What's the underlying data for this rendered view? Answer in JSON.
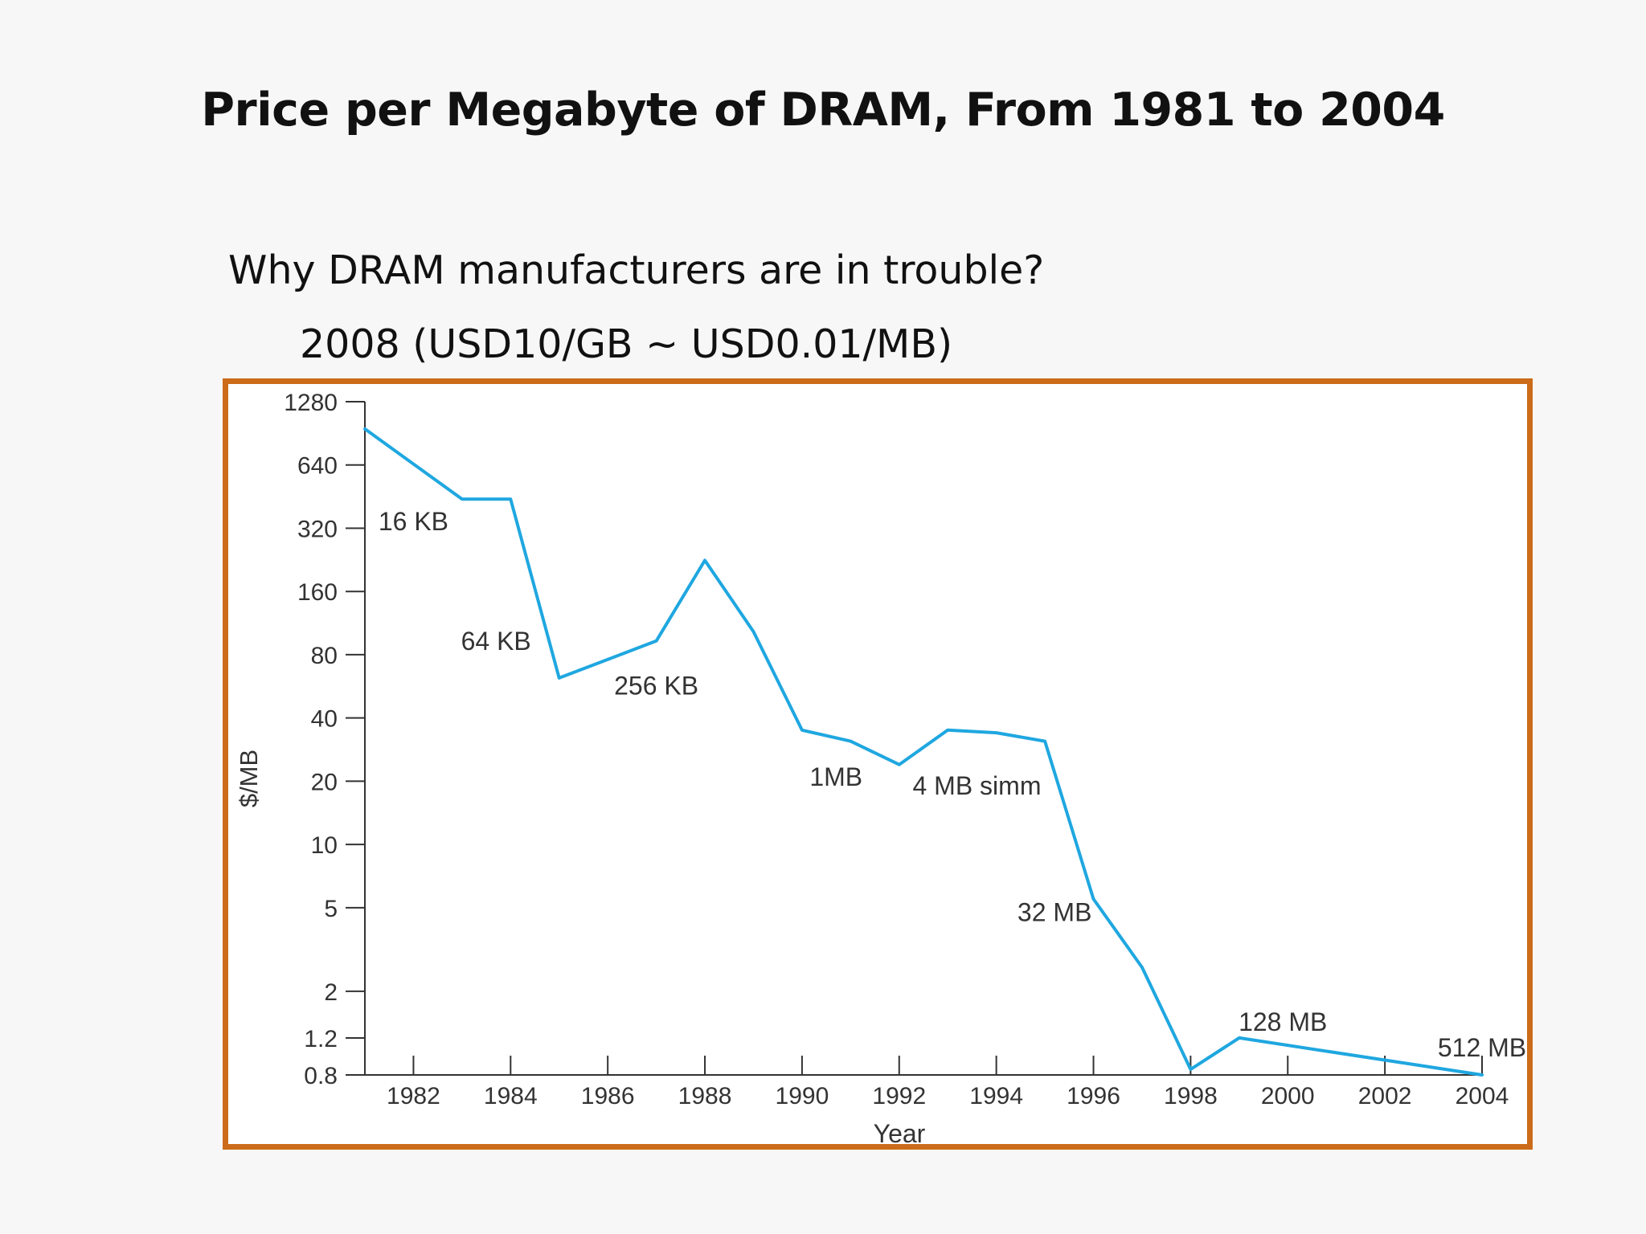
{
  "slide": {
    "title": "Price per Megabyte of DRAM, From 1981 to 2004",
    "bullet_1": "Why DRAM manufacturers are in trouble?",
    "bullet_2": "2008 (USD10/GB ~ USD0.01/MB)"
  },
  "colors": {
    "frame": "#cc6c1a",
    "line": "#1fa7e0",
    "axis": "#333333"
  },
  "chart_data": {
    "type": "line",
    "title": "",
    "xlabel": "Year",
    "ylabel": "$/MB",
    "y_scale": "log",
    "xlim": [
      1981,
      2004
    ],
    "ylim": [
      0.8,
      1280
    ],
    "x_ticks": [
      1982,
      1984,
      1986,
      1988,
      1990,
      1992,
      1994,
      1996,
      1998,
      2000,
      2002,
      2004
    ],
    "y_ticks": [
      {
        "value": 0.8,
        "label": "0.8"
      },
      {
        "value": 1.2,
        "label": "1.2"
      },
      {
        "value": 2,
        "label": "2"
      },
      {
        "value": 5,
        "label": "5"
      },
      {
        "value": 10,
        "label": "10"
      },
      {
        "value": 20,
        "label": "20"
      },
      {
        "value": 40,
        "label": "40"
      },
      {
        "value": 80,
        "label": "80"
      },
      {
        "value": 160,
        "label": "160"
      },
      {
        "value": 320,
        "label": "320"
      },
      {
        "value": 640,
        "label": "640"
      },
      {
        "value": 1280,
        "label": "1280"
      }
    ],
    "grid": false,
    "series": [
      {
        "x": [
          1981,
          1983,
          1984,
          1985,
          1987,
          1988,
          1989,
          1990,
          1991,
          1992,
          1993,
          1994,
          1995,
          1996,
          1997,
          1998,
          1999,
          2004
        ],
        "y": [
          950,
          440,
          440,
          62,
          93,
          225,
          103,
          35,
          31,
          24,
          35,
          34,
          31,
          5.5,
          2.6,
          0.85,
          1.2,
          0.8
        ]
      }
    ],
    "annotations": [
      {
        "text": "16 KB",
        "x": 1982.0,
        "y": 345
      },
      {
        "text": "64 KB",
        "x": 1983.7,
        "y": 93
      },
      {
        "text": "256 KB",
        "x": 1987.0,
        "y": 57
      },
      {
        "text": "1MB",
        "x": 1990.7,
        "y": 21
      },
      {
        "text": "4 MB simm",
        "x": 1993.6,
        "y": 19
      },
      {
        "text": "32 MB",
        "x": 1995.2,
        "y": 4.75
      },
      {
        "text": "128 MB",
        "x": 1999.9,
        "y": 1.43
      },
      {
        "text": "512 MB",
        "x": 2004.0,
        "y": 1.08
      }
    ]
  }
}
